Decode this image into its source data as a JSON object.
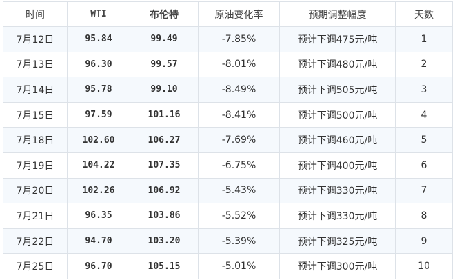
{
  "headers": [
    "时间",
    "WTI",
    "布伦特",
    "原油变化率",
    "预期调整幅度",
    "天数"
  ],
  "rows": [
    [
      "7月12日",
      "95.84",
      "99.49",
      "-7.85%",
      "预计下调475元/吨",
      "1"
    ],
    [
      "7月13日",
      "96.30",
      "99.57",
      "-8.01%",
      "预计下调480元/吨",
      "2"
    ],
    [
      "7月14日",
      "95.78",
      "99.10",
      "-8.49%",
      "预计下调505元/吨",
      "3"
    ],
    [
      "7月15日",
      "97.59",
      "101.16",
      "-8.41%",
      "预计下调500元/吨",
      "4"
    ],
    [
      "7月18日",
      "102.60",
      "106.27",
      "-7.69%",
      "预计下调460元/吨",
      "5"
    ],
    [
      "7月19日",
      "104.22",
      "107.35",
      "-6.75%",
      "预计下调400元/吨",
      "6"
    ],
    [
      "7月20日",
      "102.26",
      "106.92",
      "-5.43%",
      "预计下调330元/吨",
      "7"
    ],
    [
      "7月21日",
      "96.35",
      "103.86",
      "-5.52%",
      "预计下调330元/吨",
      "8"
    ],
    [
      "7月22日",
      "94.70",
      "103.20",
      "-5.39%",
      "预计下调325元/吨",
      "9"
    ],
    [
      "7月25日",
      "96.70",
      "105.15",
      "-5.01%",
      "预计下调300元/吨",
      "10"
    ]
  ]
}
